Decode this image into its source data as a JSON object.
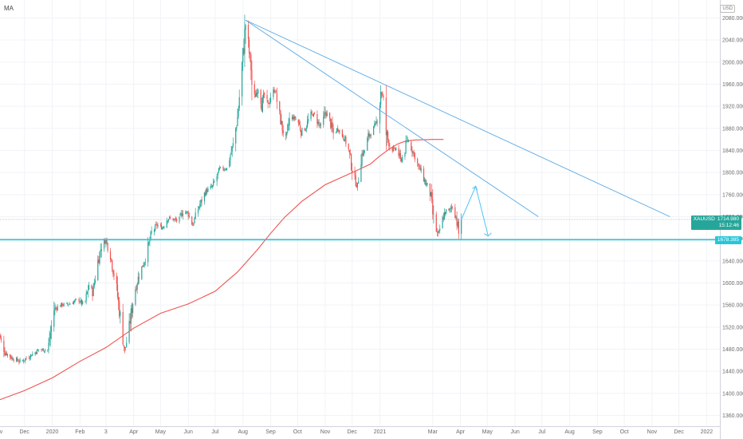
{
  "indicator_label": "MA",
  "currency_label": "USD",
  "symbol_tag": {
    "symbol": "XAUUSD",
    "price": "1714.980",
    "countdown": "15:12:46",
    "color": "#26a69a"
  },
  "support_tag": {
    "price": "1678.385",
    "color": "#26c6da"
  },
  "colors": {
    "up": "#26a69a",
    "down": "#ef5350",
    "ma": "#ef5350",
    "trendline": "#5aa9e6",
    "support": "#26c6da",
    "projection": "#4fc3f7"
  },
  "chart_data": {
    "type": "candlestick",
    "title": "",
    "xlabel": "",
    "ylabel": "",
    "ylim": [
      1340,
      2100
    ],
    "y_ticks": [
      2080,
      2040,
      2000,
      1960,
      1920,
      1880,
      1840,
      1800,
      1760,
      1720,
      1680,
      1640,
      1600,
      1560,
      1520,
      1480,
      1440,
      1400,
      1360
    ],
    "y_tick_labels": [
      "2080.000",
      "2040.000",
      "2000.000",
      "1960.000",
      "1920.000",
      "1880.000",
      "1840.000",
      "1800.000",
      "1760.000",
      "1720.000",
      "1680.000",
      "1640.000",
      "1600.000",
      "1560.000",
      "1520.000",
      "1480.000",
      "1440.000",
      "1400.000",
      "1360.000"
    ],
    "x_ticks": [
      "Nov",
      "Dec",
      "2020",
      "Feb",
      "3",
      "Apr",
      "May",
      "Jun",
      "Jul",
      "Aug",
      "Sep",
      "Oct",
      "Nov",
      "Dec",
      "2021",
      "Mar",
      "Apr",
      "May",
      "Jun",
      "Jul",
      "Aug",
      "Sep",
      "Oct",
      "Nov",
      "Dec",
      "2022"
    ],
    "x_tick_days": [
      0,
      30,
      61,
      92,
      121,
      152,
      182,
      213,
      243,
      274,
      305,
      335,
      366,
      396,
      427,
      486,
      517,
      547,
      578,
      608,
      639,
      670,
      700,
      731,
      761,
      792
    ],
    "price_path": [
      [
        0,
        1513
      ],
      [
        8,
        1475
      ],
      [
        16,
        1464
      ],
      [
        26,
        1457
      ],
      [
        36,
        1468
      ],
      [
        46,
        1479
      ],
      [
        56,
        1479
      ],
      [
        63,
        1552
      ],
      [
        70,
        1560
      ],
      [
        80,
        1562
      ],
      [
        90,
        1570
      ],
      [
        97,
        1559
      ],
      [
        102,
        1597
      ],
      [
        106,
        1582
      ],
      [
        112,
        1640
      ],
      [
        116,
        1668
      ],
      [
        121,
        1678
      ],
      [
        126,
        1650
      ],
      [
        132,
        1600
      ],
      [
        138,
        1527
      ],
      [
        142,
        1475
      ],
      [
        147,
        1520
      ],
      [
        152,
        1578
      ],
      [
        158,
        1615
      ],
      [
        165,
        1645
      ],
      [
        172,
        1690
      ],
      [
        178,
        1705
      ],
      [
        184,
        1700
      ],
      [
        190,
        1718
      ],
      [
        196,
        1715
      ],
      [
        202,
        1712
      ],
      [
        207,
        1730
      ],
      [
        212,
        1728
      ],
      [
        218,
        1705
      ],
      [
        224,
        1735
      ],
      [
        232,
        1765
      ],
      [
        240,
        1775
      ],
      [
        248,
        1805
      ],
      [
        256,
        1808
      ],
      [
        263,
        1850
      ],
      [
        268,
        1900
      ],
      [
        272,
        1975
      ],
      [
        275,
        2030
      ],
      [
        277,
        2070
      ],
      [
        280,
        2030
      ],
      [
        283,
        1990
      ],
      [
        285,
        1930
      ],
      [
        288,
        1940
      ],
      [
        292,
        1960
      ],
      [
        295,
        1925
      ],
      [
        298,
        1940
      ],
      [
        302,
        1920
      ],
      [
        306,
        1945
      ],
      [
        310,
        1950
      ],
      [
        314,
        1910
      ],
      [
        318,
        1880
      ],
      [
        322,
        1860
      ],
      [
        326,
        1895
      ],
      [
        330,
        1900
      ],
      [
        335,
        1895
      ],
      [
        339,
        1875
      ],
      [
        344,
        1880
      ],
      [
        349,
        1905
      ],
      [
        354,
        1905
      ],
      [
        358,
        1890
      ],
      [
        362,
        1880
      ],
      [
        366,
        1910
      ],
      [
        370,
        1900
      ],
      [
        375,
        1870
      ],
      [
        380,
        1880
      ],
      [
        384,
        1870
      ],
      [
        388,
        1860
      ],
      [
        392,
        1840
      ],
      [
        395,
        1815
      ],
      [
        398,
        1790
      ],
      [
        402,
        1775
      ],
      [
        406,
        1830
      ],
      [
        410,
        1840
      ],
      [
        414,
        1865
      ],
      [
        418,
        1875
      ],
      [
        422,
        1885
      ],
      [
        426,
        1910
      ],
      [
        428,
        1950
      ],
      [
        431,
        1930
      ],
      [
        434,
        1870
      ],
      [
        438,
        1850
      ],
      [
        442,
        1840
      ],
      [
        446,
        1845
      ],
      [
        450,
        1820
      ],
      [
        454,
        1835
      ],
      [
        458,
        1860
      ],
      [
        462,
        1845
      ],
      [
        466,
        1830
      ],
      [
        470,
        1810
      ],
      [
        474,
        1800
      ],
      [
        478,
        1780
      ],
      [
        482,
        1775
      ],
      [
        486,
        1725
      ],
      [
        489,
        1700
      ],
      [
        492,
        1685
      ],
      [
        496,
        1710
      ],
      [
        500,
        1730
      ],
      [
        504,
        1730
      ],
      [
        508,
        1740
      ],
      [
        512,
        1720
      ],
      [
        515,
        1690
      ],
      [
        518,
        1715
      ]
    ],
    "projection_path": [
      [
        518,
        1715
      ],
      [
        534,
        1775
      ],
      [
        548,
        1685
      ]
    ],
    "ma_path": [
      [
        0,
        1387
      ],
      [
        30,
        1405
      ],
      [
        61,
        1428
      ],
      [
        92,
        1458
      ],
      [
        121,
        1483
      ],
      [
        152,
        1518
      ],
      [
        182,
        1545
      ],
      [
        213,
        1562
      ],
      [
        243,
        1585
      ],
      [
        268,
        1620
      ],
      [
        290,
        1660
      ],
      [
        305,
        1690
      ],
      [
        320,
        1718
      ],
      [
        340,
        1748
      ],
      [
        366,
        1778
      ],
      [
        396,
        1800
      ],
      [
        416,
        1815
      ],
      [
        427,
        1830
      ],
      [
        437,
        1842
      ],
      [
        447,
        1852
      ],
      [
        456,
        1857
      ],
      [
        466,
        1859
      ],
      [
        486,
        1860
      ],
      [
        498,
        1860
      ]
    ],
    "trendlines": [
      [
        [
          277,
          2076
        ],
        [
          604,
          1720
        ]
      ],
      [
        [
          277,
          2076
        ],
        [
          751,
          1720
        ]
      ]
    ],
    "support_level": 1678.385,
    "last_price": 1714.98
  }
}
